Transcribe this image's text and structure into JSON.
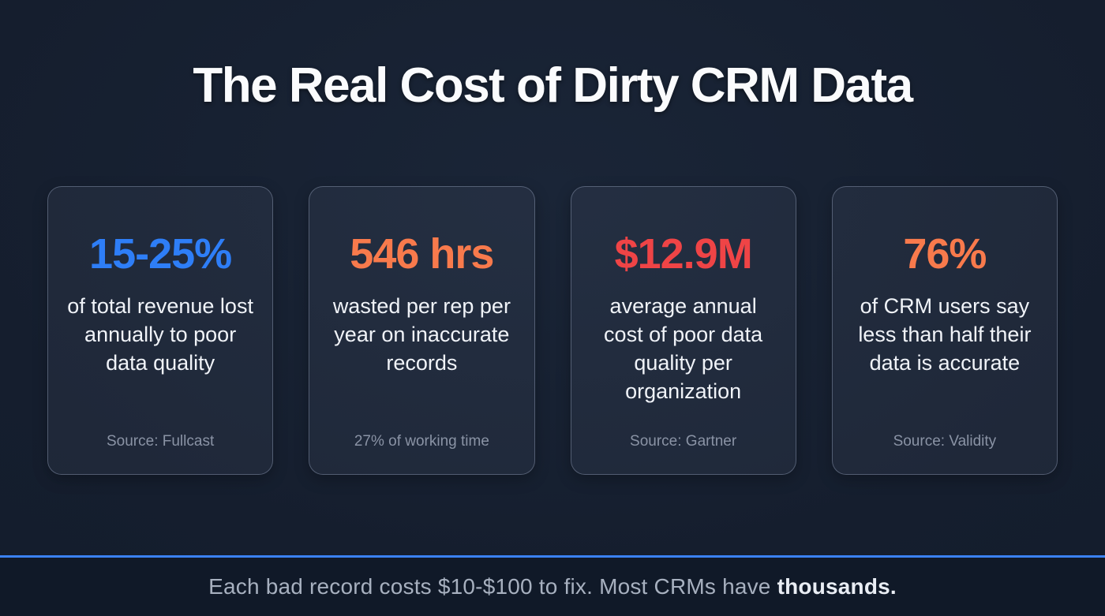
{
  "page": {
    "title": "The Real Cost of Dirty CRM Data",
    "background_color": "#151e2e",
    "divider_color": "#3b82f6",
    "footer_background_color": "#101928"
  },
  "cards": [
    {
      "value": "15-25%",
      "accent_color": "#2e7ef7",
      "description": "of total revenue lost annually to poor data quality",
      "source": "Source: Fullcast"
    },
    {
      "value": "546 hrs",
      "accent_color": "#f87a4c",
      "description": "wasted per rep per year on inaccurate records",
      "source": "27% of working time"
    },
    {
      "value": "$12.9M",
      "accent_color": "#ef4446",
      "description": "average annual cost of poor data quality per organization",
      "source": "Source: Gartner"
    },
    {
      "value": "76%",
      "accent_color": "#f87a4c",
      "description": "of CRM users say less than half their data is accurate",
      "source": "Source: Validity"
    }
  ],
  "footer": {
    "text": "Each bad record costs $10-$100 to fix. Most CRMs have ",
    "highlight": "thousands."
  }
}
